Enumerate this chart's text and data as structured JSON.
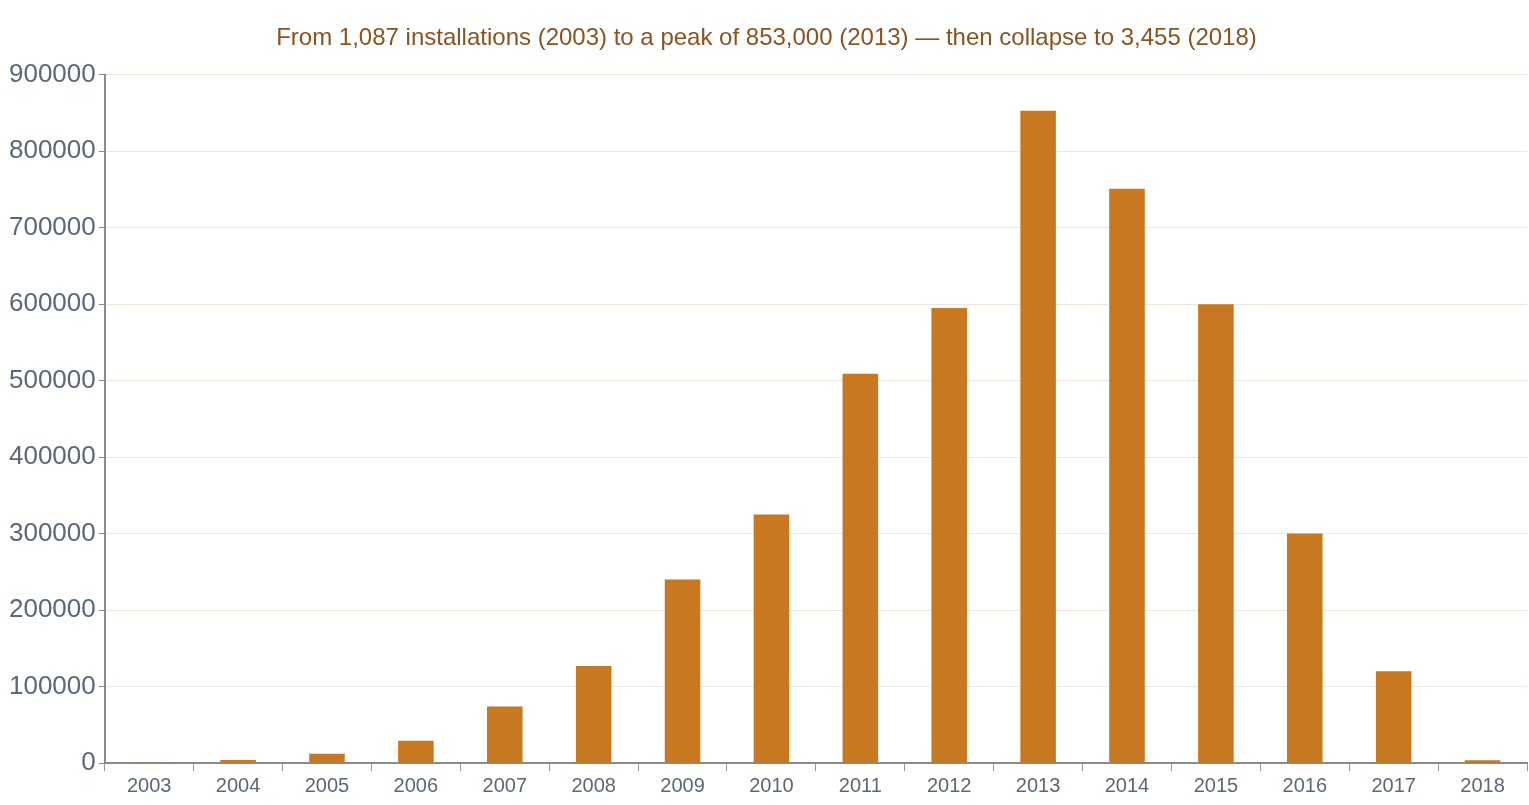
{
  "chart_data": {
    "type": "bar",
    "title": "From 1,087 installations (2003) to a peak of 853,000 (2013) — then collapse to 3,455 (2018)",
    "categories": [
      "2003",
      "2004",
      "2005",
      "2006",
      "2007",
      "2008",
      "2009",
      "2010",
      "2011",
      "2012",
      "2013",
      "2014",
      "2015",
      "2016",
      "2017",
      "2018"
    ],
    "values": [
      1087,
      4000,
      12000,
      29000,
      74000,
      127000,
      240000,
      325000,
      509000,
      595000,
      853000,
      751000,
      600000,
      300000,
      120000,
      3455
    ],
    "color": "#c87820",
    "ylim": [
      0,
      900000
    ],
    "yticks": [
      0,
      100000,
      200000,
      300000,
      400000,
      500000,
      600000,
      700000,
      800000,
      900000
    ],
    "grid": "y",
    "legend": false
  }
}
